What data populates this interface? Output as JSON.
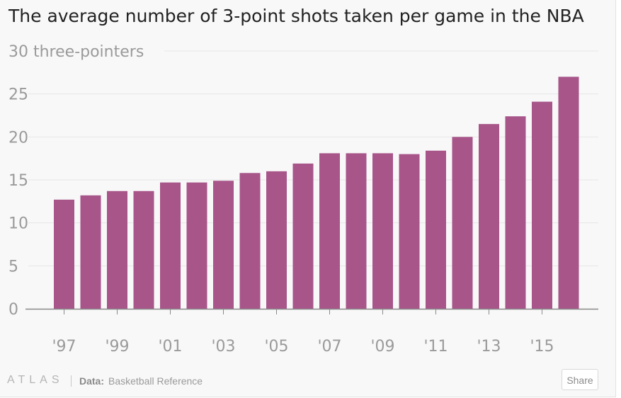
{
  "chart_data": {
    "type": "bar",
    "title": "The average number of 3-point shots taken per game in the NBA",
    "ylabel_unit": "three-pointers",
    "categories": [
      "'97",
      "'98",
      "'99",
      "'00",
      "'01",
      "'02",
      "'03",
      "'04",
      "'05",
      "'06",
      "'07",
      "'08",
      "'09",
      "'10",
      "'11",
      "'12",
      "'13",
      "'14",
      "'15",
      "'16"
    ],
    "values": [
      12.7,
      13.2,
      13.7,
      13.7,
      14.7,
      14.7,
      14.9,
      15.8,
      16.0,
      16.9,
      18.1,
      18.1,
      18.1,
      18.0,
      18.4,
      20.0,
      21.5,
      22.4,
      24.1,
      27.0
    ],
    "x_tick_labels": [
      "'97",
      "'99",
      "'01",
      "'03",
      "'05",
      "'07",
      "'09",
      "'11",
      "'13",
      "'15"
    ],
    "y_ticks": [
      0,
      5,
      10,
      15,
      20,
      25,
      30
    ],
    "ylim": [
      0,
      30
    ],
    "grid": true,
    "bar_color": "#a8558a"
  },
  "footer": {
    "logo": "ATLAS",
    "source_label": "Data:",
    "source": "Basketball Reference",
    "share_label": "Share"
  }
}
